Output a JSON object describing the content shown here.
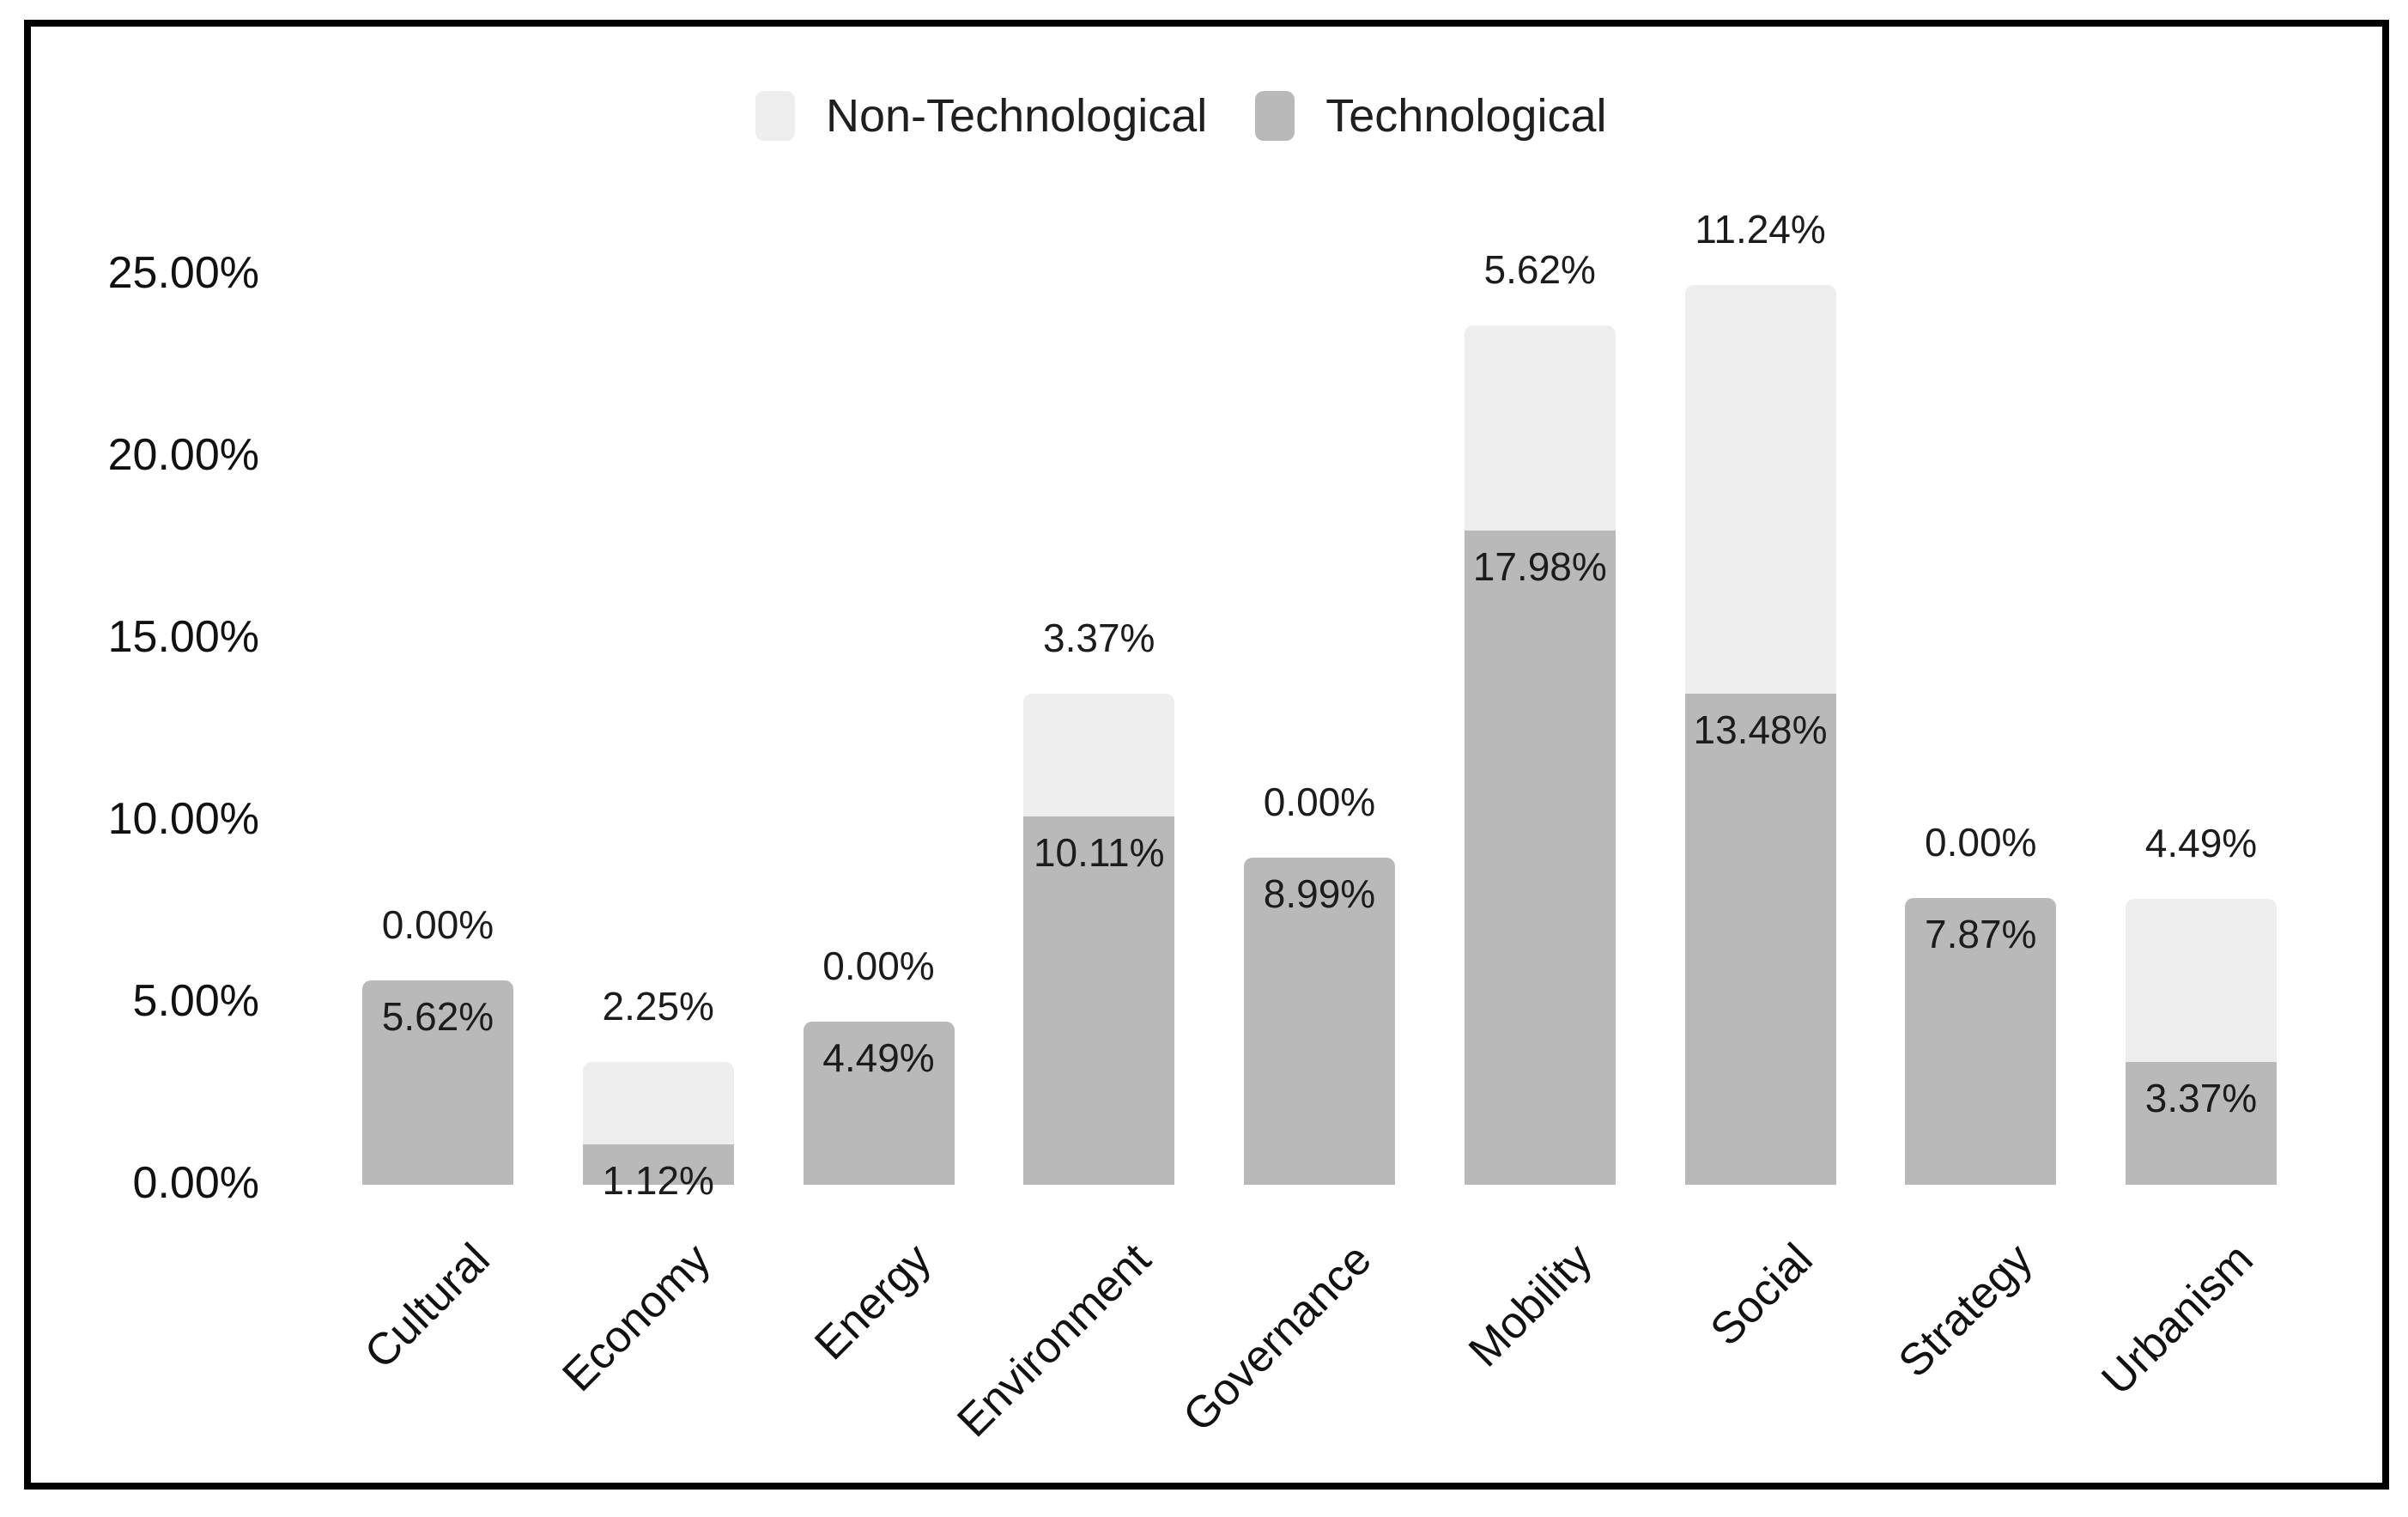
{
  "chart_data": {
    "type": "bar",
    "stacked": true,
    "title": "",
    "xlabel": "",
    "ylabel": "",
    "grid": "off",
    "legend_position": "top-center",
    "value_suffix": "%",
    "categories": [
      "Cultural",
      "Economy",
      "Energy",
      "Environment",
      "Governance",
      "Mobility",
      "Social",
      "Strategy",
      "Urbanism"
    ],
    "series": [
      {
        "name": "Non-Technological",
        "color": "#eeeeee",
        "values": [
          0.0,
          2.25,
          0.0,
          3.37,
          0.0,
          5.62,
          11.24,
          0.0,
          4.49
        ],
        "data_labels": [
          "0.00%",
          "2.25%",
          "0.00%",
          "3.37%",
          "0.00%",
          "5.62%",
          "11.24%",
          "0.00%",
          "4.49%"
        ]
      },
      {
        "name": "Technological",
        "color": "#b9b9b9",
        "values": [
          5.62,
          1.12,
          4.49,
          10.11,
          8.99,
          17.98,
          13.48,
          7.87,
          3.37
        ],
        "data_labels": [
          "5.62%",
          "1.12%",
          "4.49%",
          "10.11%",
          "8.99%",
          "17.98%",
          "13.48%",
          "7.87%",
          "3.37%"
        ]
      }
    ],
    "y_axis": {
      "ticks": [
        "0.00%",
        "5.00%",
        "10.00%",
        "15.00%",
        "20.00%",
        "25.00%"
      ],
      "tick_values": [
        0,
        5,
        10,
        15,
        20,
        25
      ]
    },
    "ylim": [
      0,
      25
    ]
  }
}
